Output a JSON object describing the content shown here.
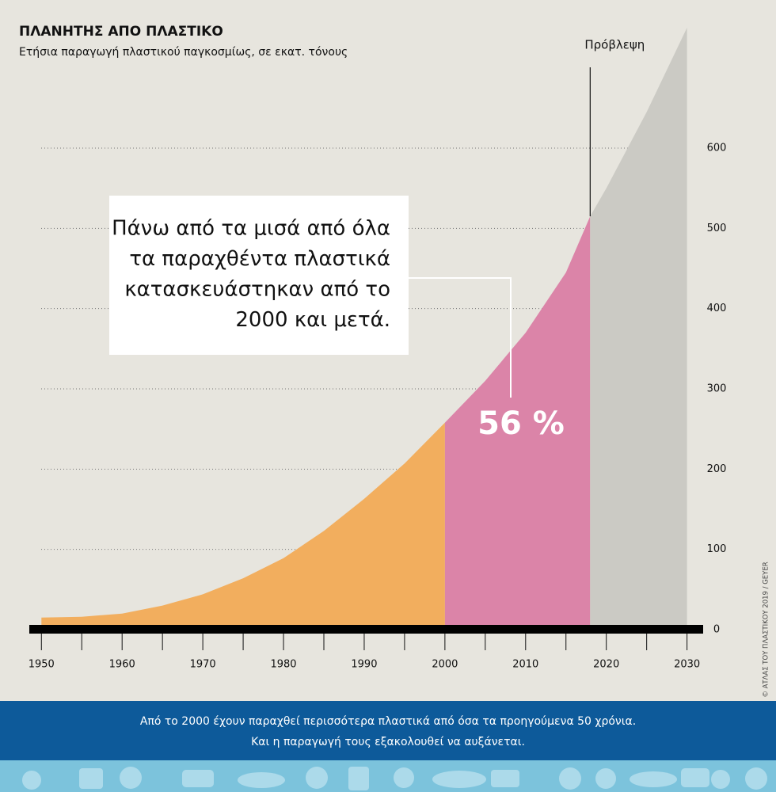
{
  "chart_data": {
    "type": "area",
    "title": "ΠΛΑΝΗΤΗΣ ΑΠΟ ΠΛΑΣΤΙΚΟ",
    "subtitle": "Ετήσια παραγωγή πλαστικού παγκοσμίως, σε εκατ. τόνους",
    "series": [
      {
        "color": "#f2ae5e",
        "x": [
          1950,
          1955,
          1960,
          1965,
          1970,
          1975,
          1980,
          1985,
          1990,
          1995,
          2000
        ],
        "values": [
          15,
          16,
          20,
          30,
          44,
          64,
          89,
          123,
          163,
          207,
          258
        ]
      },
      {
        "color": "#db84a8",
        "x": [
          2000,
          2005,
          2010,
          2015,
          2018
        ],
        "values": [
          258,
          310,
          370,
          445,
          515
        ]
      },
      {
        "color": "#cbcac4",
        "x": [
          2018,
          2020,
          2025,
          2030
        ],
        "values": [
          515,
          550,
          645,
          750
        ]
      }
    ],
    "xlim": [
      1948.5,
      2032
    ],
    "xticks": [
      1950,
      1960,
      1970,
      1980,
      1990,
      2000,
      2010,
      2020,
      2030
    ],
    "xminorticks": [
      1955,
      1965,
      1975,
      1985,
      1995,
      2005,
      2015,
      2025
    ],
    "ylim": [
      0,
      750
    ],
    "yticks": [
      0,
      100,
      200,
      300,
      400,
      500,
      600
    ],
    "grid": true,
    "forecast_label": "Πρόβλεψη",
    "annotation_lines": [
      "Πάνω από τα μισά από όλα",
      "τα παραχθέντα πλαστικά",
      "κατασκευάστηκαν από το",
      "2000 και μετά."
    ],
    "share_label": "56 %",
    "credit": "© ΑΤΛΑΣ ΤΟΥ ΠΛΑΣΤΙΚΟΥ 2019 / GEYER",
    "footer_lines": [
      "Από το 2000 έχουν παραχθεί περισσότερα πλαστικά από όσα τα προηγούμενα 50 χρόνια.",
      "Και η παραγωγή τους εξακολουθεί να αυξάνεται."
    ]
  }
}
